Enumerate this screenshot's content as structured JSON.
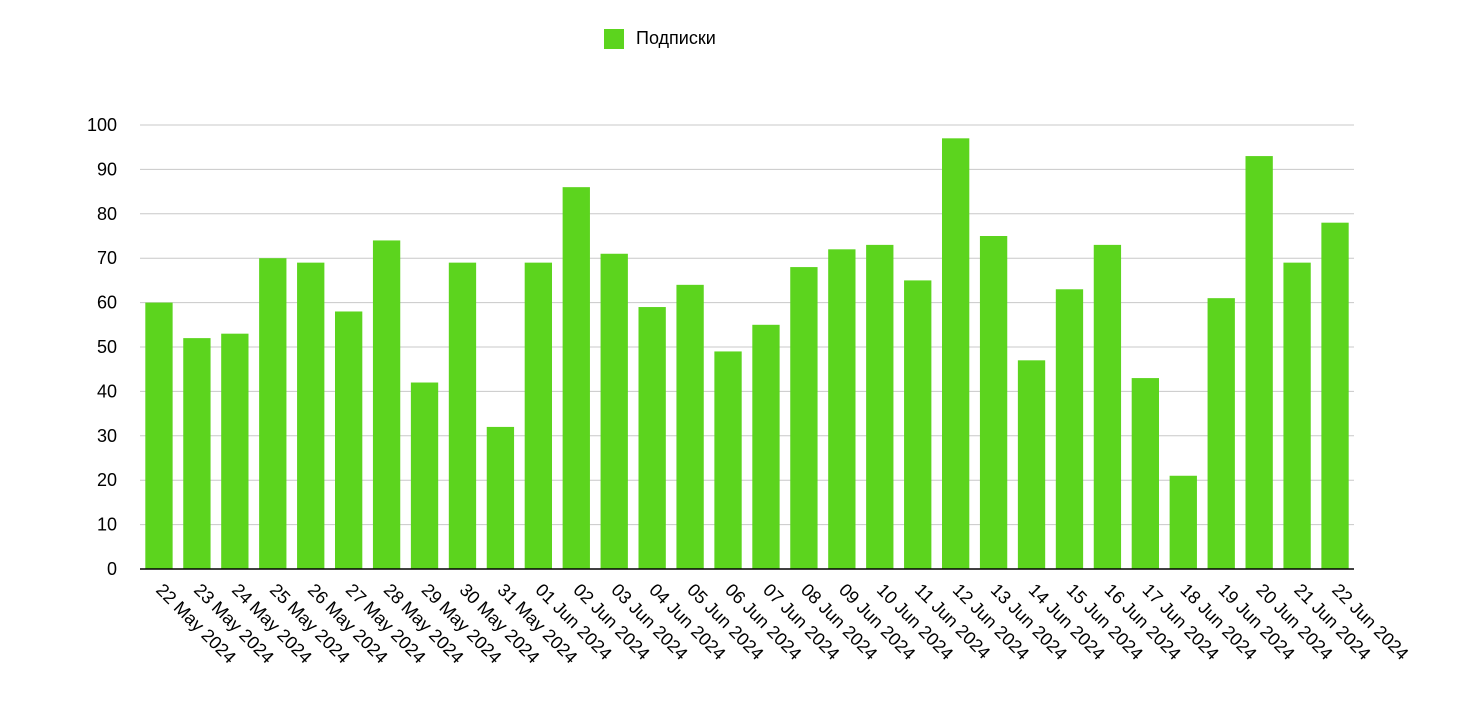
{
  "chart_data": {
    "type": "bar",
    "title": "",
    "xlabel": "",
    "ylabel": "",
    "legend": {
      "position": "top-center"
    },
    "grid": true,
    "ylim": [
      0,
      100
    ],
    "yticks": [
      0,
      10,
      20,
      30,
      40,
      50,
      60,
      70,
      80,
      90,
      100
    ],
    "categories": [
      "22 May 2024",
      "23 May 2024",
      "24 May 2024",
      "25 May 2024",
      "26 May 2024",
      "27 May 2024",
      "28 May 2024",
      "29 May 2024",
      "30 May 2024",
      "31 May 2024",
      "01 Jun 2024",
      "02 Jun 2024",
      "03 Jun 2024",
      "04 Jun 2024",
      "05 Jun 2024",
      "06 Jun 2024",
      "07 Jun 2024",
      "08 Jun 2024",
      "09 Jun 2024",
      "10 Jun 2024",
      "11 Jun 2024",
      "12 Jun 2024",
      "13 Jun 2024",
      "14 Jun 2024",
      "15 Jun 2024",
      "16 Jun 2024",
      "17 Jun 2024",
      "18 Jun 2024",
      "19 Jun 2024",
      "20 Jun 2024",
      "21 Jun 2024",
      "22 Jun 2024"
    ],
    "series": [
      {
        "name": "Подписки",
        "color": "#5cd41e",
        "values": [
          60,
          52,
          53,
          70,
          69,
          58,
          74,
          42,
          69,
          32,
          69,
          86,
          71,
          59,
          64,
          49,
          55,
          68,
          72,
          73,
          65,
          97,
          75,
          47,
          63,
          73,
          43,
          21,
          61,
          93,
          69,
          78
        ]
      }
    ]
  }
}
